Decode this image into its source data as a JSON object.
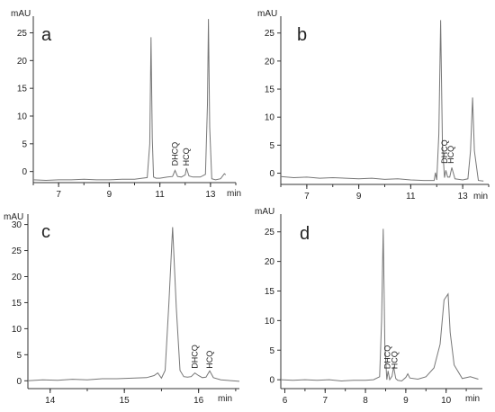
{
  "chart_data": [
    {
      "type": "line",
      "panel_label": "a",
      "y_unit": "mAU",
      "x_unit": "min",
      "ylim": [
        -2,
        28
      ],
      "xlim": [
        6,
        14
      ],
      "y_ticks": [
        0,
        5,
        10,
        15,
        20,
        25
      ],
      "x_ticks": [
        7,
        9,
        11,
        13
      ],
      "peak_labels": [
        {
          "text": "DHCQ",
          "x": 11.6,
          "y": 0.7
        },
        {
          "text": "HCQ",
          "x": 12.05,
          "y": 0.7
        }
      ],
      "series": [
        {
          "x": [
            6.0,
            6.5,
            7.0,
            7.5,
            8.0,
            8.5,
            9.0,
            9.5,
            10.0,
            10.3,
            10.5,
            10.6,
            10.65,
            10.7,
            10.75,
            10.85,
            11.0,
            11.3,
            11.5,
            11.6,
            11.7,
            11.85,
            12.0,
            12.05,
            12.15,
            12.3,
            12.6,
            12.8,
            12.88,
            12.92,
            12.97,
            13.05,
            13.2,
            13.4,
            13.55,
            13.6
          ],
          "y": [
            -1.5,
            -1.6,
            -1.5,
            -1.5,
            -1.4,
            -1.5,
            -1.5,
            -1.4,
            -1.4,
            -1.2,
            -1.1,
            5.0,
            24.2,
            6.0,
            -1.0,
            -1.2,
            -1.2,
            -1.0,
            -0.9,
            0.2,
            -0.9,
            -1.0,
            -0.6,
            0.6,
            -0.8,
            -1.0,
            -1.0,
            -0.5,
            12.0,
            27.5,
            8.0,
            -1.3,
            -1.5,
            -1.3,
            -0.4,
            -0.6
          ]
        }
      ]
    },
    {
      "type": "line",
      "panel_label": "b",
      "y_unit": "mAU",
      "x_unit": "min",
      "ylim": [
        -2,
        28
      ],
      "xlim": [
        6,
        14
      ],
      "y_ticks": [
        0,
        5,
        10,
        15,
        20,
        25
      ],
      "x_ticks": [
        7,
        9,
        11,
        13
      ],
      "peak_labels": [
        {
          "text": "DHCQ",
          "x": 12.3,
          "y": 1.4
        },
        {
          "text": "HCQ",
          "x": 12.55,
          "y": 1.4
        }
      ],
      "series": [
        {
          "x": [
            6.0,
            6.5,
            7.0,
            7.5,
            8.0,
            8.5,
            9.0,
            9.5,
            10.0,
            10.5,
            11.0,
            11.5,
            11.9,
            11.95,
            12.0,
            12.08,
            12.15,
            12.22,
            12.3,
            12.35,
            12.42,
            12.5,
            12.58,
            12.7,
            13.0,
            13.2,
            13.3,
            13.38,
            13.45,
            13.6,
            13.8
          ],
          "y": [
            -0.6,
            -0.8,
            -0.7,
            -0.9,
            -0.8,
            -0.9,
            -1.0,
            -0.9,
            -1.1,
            -1.0,
            -1.2,
            -1.3,
            -1.3,
            0.1,
            -1.2,
            7.0,
            27.3,
            5.0,
            -0.8,
            0.5,
            -0.7,
            -0.7,
            1.0,
            -1.0,
            -1.2,
            -1.0,
            4.0,
            13.5,
            4.0,
            -1.3,
            -1.4
          ]
        }
      ]
    },
    {
      "type": "line",
      "panel_label": "c",
      "y_unit": "mAU",
      "x_unit": "min",
      "ylim": [
        -1.5,
        32
      ],
      "xlim": [
        13.7,
        16.55
      ],
      "y_ticks": [
        0,
        5,
        10,
        15,
        20,
        25,
        30
      ],
      "x_ticks": [
        14,
        15,
        16
      ],
      "peak_labels": [
        {
          "text": "DHCQ",
          "x": 15.95,
          "y": 2.0
        },
        {
          "text": "HCQ",
          "x": 16.15,
          "y": 2.0
        }
      ],
      "series": [
        {
          "x": [
            13.7,
            13.9,
            14.1,
            14.3,
            14.5,
            14.7,
            14.9,
            15.1,
            15.3,
            15.4,
            15.45,
            15.5,
            15.55,
            15.6,
            15.65,
            15.7,
            15.75,
            15.8,
            15.85,
            15.9,
            15.95,
            16.0,
            16.05,
            16.1,
            16.15,
            16.2,
            16.3,
            16.45,
            16.55
          ],
          "y": [
            0.0,
            0.2,
            0.1,
            0.3,
            0.2,
            0.4,
            0.4,
            0.5,
            0.6,
            1.0,
            1.5,
            0.5,
            2.0,
            15.0,
            29.5,
            14.0,
            2.0,
            0.8,
            0.7,
            0.8,
            1.5,
            1.0,
            0.6,
            0.7,
            1.9,
            0.6,
            0.2,
            0.0,
            -0.1
          ]
        }
      ]
    },
    {
      "type": "line",
      "panel_label": "d",
      "y_unit": "mAU",
      "x_unit": "min",
      "ylim": [
        -1.5,
        28
      ],
      "xlim": [
        5.9,
        10.9
      ],
      "y_ticks": [
        0,
        5,
        10,
        15,
        20,
        25
      ],
      "x_ticks": [
        6,
        7,
        8,
        9,
        10
      ],
      "peak_labels": [
        {
          "text": "DHCQ",
          "x": 8.55,
          "y": 1.5
        },
        {
          "text": "HCQ",
          "x": 8.72,
          "y": 1.5
        }
      ],
      "series": [
        {
          "x": [
            5.9,
            6.2,
            6.5,
            6.8,
            7.1,
            7.4,
            7.7,
            8.0,
            8.2,
            8.35,
            8.4,
            8.44,
            8.48,
            8.53,
            8.56,
            8.6,
            8.66,
            8.7,
            8.75,
            8.8,
            8.9,
            9.0,
            9.05,
            9.1,
            9.3,
            9.5,
            9.7,
            9.85,
            9.95,
            10.05,
            10.1,
            10.2,
            10.4,
            10.6,
            10.8
          ],
          "y": [
            0.0,
            -0.1,
            0.0,
            -0.1,
            0.0,
            -0.2,
            -0.1,
            -0.1,
            0.0,
            0.5,
            10.0,
            25.5,
            6.0,
            0.0,
            1.5,
            0.0,
            0.6,
            2.2,
            0.2,
            -0.1,
            -0.2,
            0.4,
            1.0,
            0.3,
            0.1,
            0.5,
            2.0,
            6.0,
            13.5,
            14.5,
            8.0,
            2.5,
            0.2,
            0.5,
            0.1
          ]
        }
      ]
    }
  ]
}
